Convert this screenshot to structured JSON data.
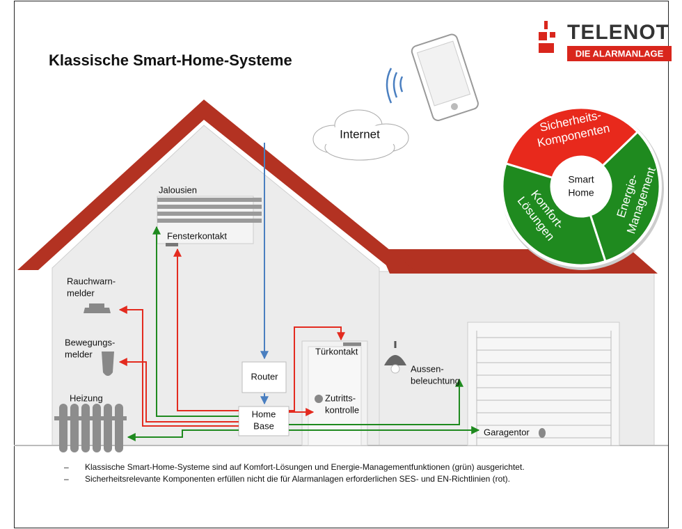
{
  "header": {
    "title": "Klassische Smart-Home-Systeme"
  },
  "logo": {
    "name": "TELENOT",
    "tagline": "DIE ALARMANLAGE"
  },
  "cloud": {
    "label": "Internet"
  },
  "wheel": {
    "center": [
      "Smart",
      "Home"
    ],
    "segments": [
      {
        "lines": [
          "Sicherheits-",
          "Komponenten"
        ]
      },
      {
        "lines": [
          "Energie-",
          "Management"
        ]
      },
      {
        "lines": [
          "Komfort-",
          "Lösungen"
        ]
      }
    ]
  },
  "nodes": [
    {
      "lines": [
        "Jalousien"
      ]
    },
    {
      "lines": [
        "Fensterkontakt"
      ]
    },
    {
      "lines": [
        "Rauchwarn-",
        "melder"
      ]
    },
    {
      "lines": [
        "Bewegungs-",
        "melder"
      ]
    },
    {
      "lines": [
        "Heizung"
      ]
    },
    {
      "lines": [
        "Router"
      ]
    },
    {
      "lines": [
        "Home",
        "Base"
      ]
    },
    {
      "lines": [
        "Türkontakt"
      ]
    },
    {
      "lines": [
        "Zutritts-",
        "kontrolle"
      ]
    },
    {
      "lines": [
        "Aussen-",
        "beleuchtung"
      ]
    },
    {
      "lines": [
        "Garagentor"
      ]
    }
  ],
  "notes": [
    {
      "marker": "–",
      "text": "Klassische Smart-Home-Systeme sind auf Komfort-Lösungen und Energie-Managementfunktionen (grün) ausgerichtet."
    },
    {
      "marker": "–",
      "text": "Sicherheitsrelevante Komponenten erfüllen nicht die für Alarmanlagen erforderlichen SES- und EN-Richtlinien (rot)."
    }
  ]
}
